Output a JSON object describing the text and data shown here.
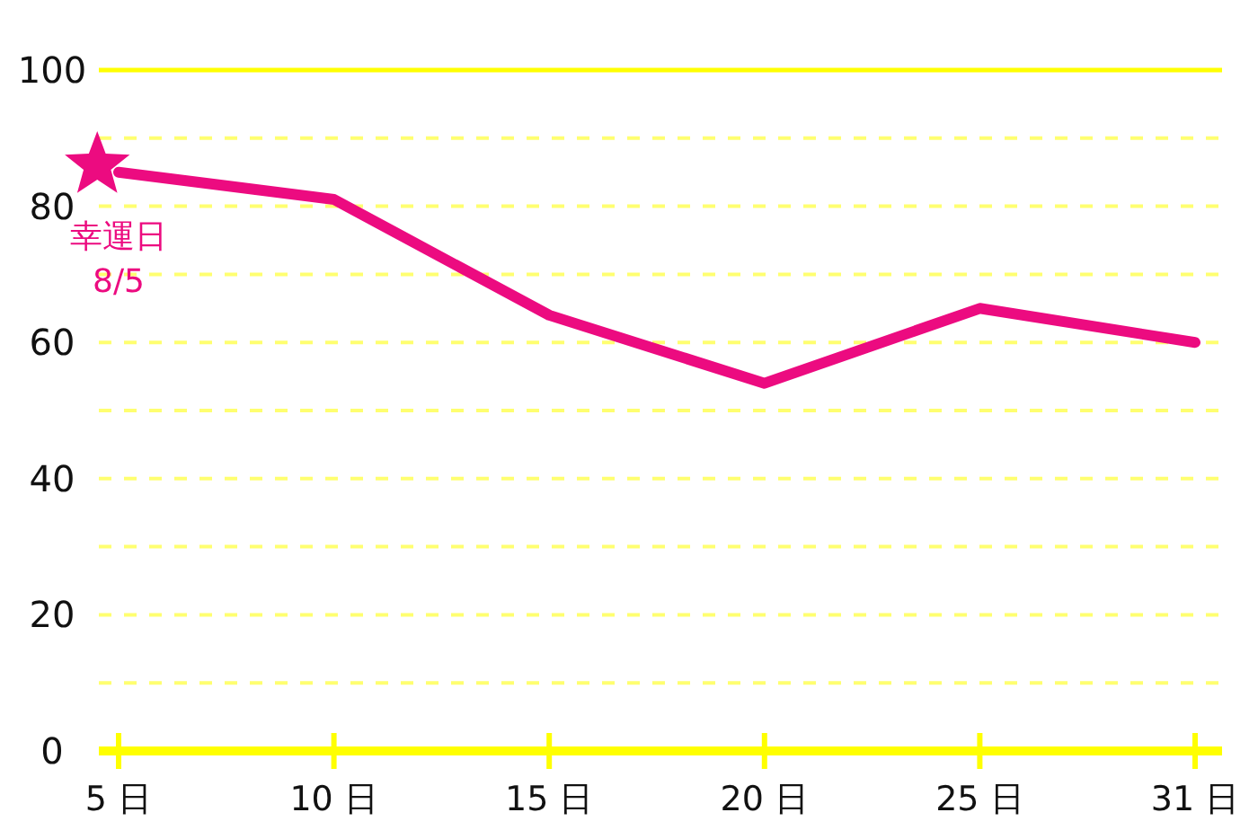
{
  "chart_data": {
    "type": "line",
    "categories": [
      "5 日",
      "10 日",
      "15 日",
      "20 日",
      "25 日",
      "31 日"
    ],
    "series": [
      {
        "color": "#ec0b80",
        "values": [
          85,
          81,
          64,
          54,
          65,
          60
        ]
      }
    ],
    "ylim": [
      0,
      100
    ],
    "yticks": [
      0,
      {
        "value": 10,
        "label": null
      },
      20,
      {
        "value": 30,
        "label": null
      },
      40,
      {
        "value": 50,
        "label": null
      },
      60,
      {
        "value": 70,
        "label": null
      },
      80,
      {
        "value": 90,
        "label": null
      },
      100
    ],
    "grid": "y",
    "line_style": "solid",
    "annotations": [
      {
        "text": "幸運日\n8/5",
        "x": "5 日",
        "y": 85
      }
    ]
  }
}
